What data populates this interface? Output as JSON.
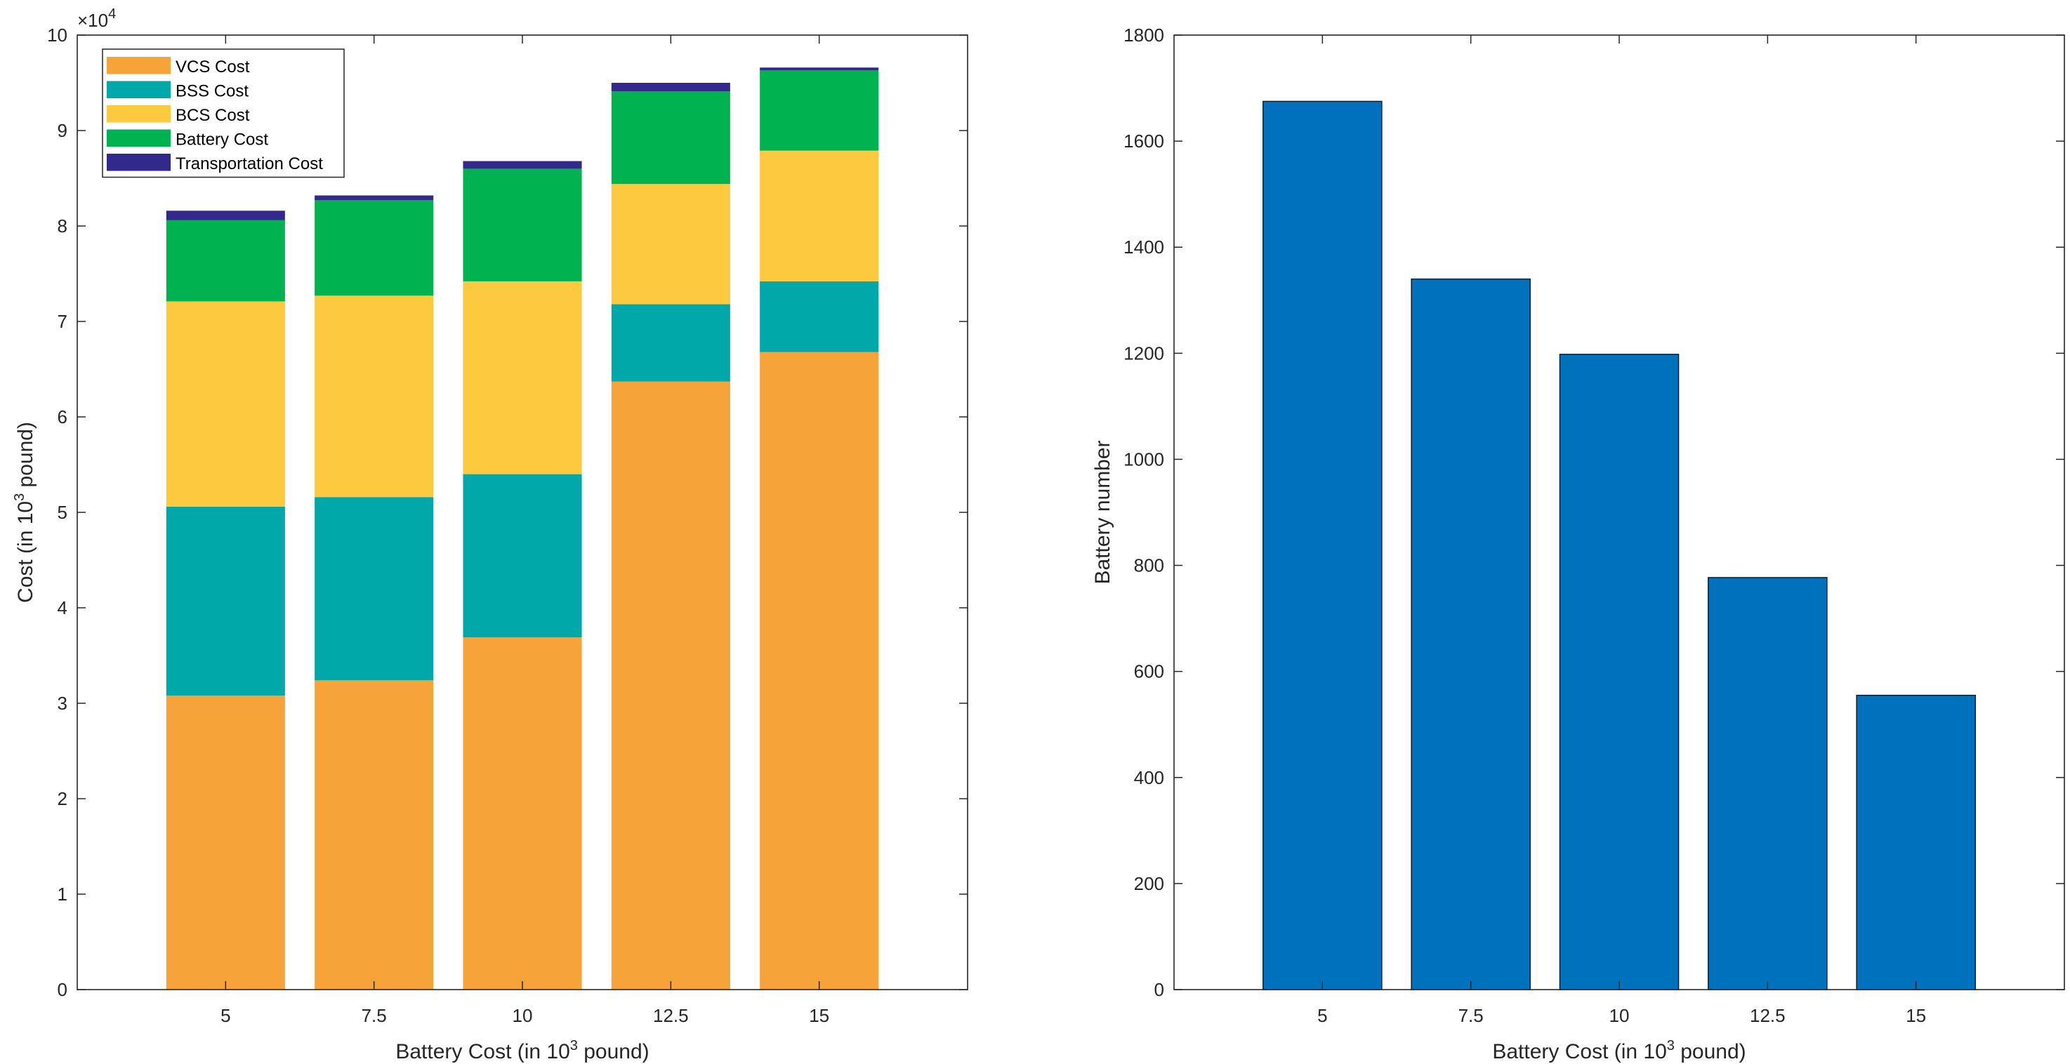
{
  "chart_data": [
    {
      "type": "bar",
      "stacked": true,
      "categories": [
        "5",
        "7.5",
        "10",
        "12.5",
        "15"
      ],
      "xlabel": "Battery Cost (in 10^3 pound)",
      "xlabel_parts": {
        "before": "Battery Cost (in 10",
        "sup": "3",
        "after": " pound)"
      },
      "ylabel": "Cost (in 10^3 pound)",
      "ylabel_parts": {
        "before": "Cost (in 10",
        "sup": "3",
        "after": " pound)"
      },
      "ylim": [
        0,
        100000
      ],
      "yticks": [
        0,
        10000,
        20000,
        30000,
        40000,
        50000,
        60000,
        70000,
        80000,
        90000,
        100000
      ],
      "ytick_labels": [
        "0",
        "1",
        "2",
        "3",
        "4",
        "5",
        "6",
        "7",
        "8",
        "9",
        "10"
      ],
      "y_multiplier_base": "×10",
      "y_multiplier_exp": "4",
      "legend_location": "top-left",
      "series": [
        {
          "name": "VCS Cost",
          "color": "#F6A33A",
          "values": [
            30800,
            32400,
            36900,
            63700,
            66800
          ]
        },
        {
          "name": "BSS Cost",
          "color": "#00A8AA",
          "values": [
            19800,
            19200,
            17100,
            8100,
            7400
          ]
        },
        {
          "name": "BCS Cost",
          "color": "#FCC93F",
          "values": [
            21500,
            21100,
            20200,
            12600,
            13700
          ]
        },
        {
          "name": "Battery Cost",
          "color": "#00B350",
          "values": [
            8500,
            10000,
            11800,
            9700,
            8400
          ]
        },
        {
          "name": "Transportation Cost",
          "color": "#33288C",
          "values": [
            1000,
            500,
            800,
            900,
            300
          ]
        }
      ]
    },
    {
      "type": "bar",
      "categories": [
        "5",
        "7.5",
        "10",
        "12.5",
        "15"
      ],
      "values": [
        1675,
        1340,
        1198,
        777,
        555
      ],
      "color": "#0072BD",
      "xlabel": "Battery Cost (in 10^3 pound)",
      "xlabel_parts": {
        "before": "Battery Cost (in 10",
        "sup": "3",
        "after": " pound)"
      },
      "ylabel": "Battery number",
      "ylim": [
        0,
        1800
      ],
      "yticks": [
        0,
        200,
        400,
        600,
        800,
        1000,
        1200,
        1400,
        1600,
        1800
      ],
      "ytick_labels": [
        "0",
        "200",
        "400",
        "600",
        "800",
        "1000",
        "1200",
        "1400",
        "1600",
        "1800"
      ]
    }
  ]
}
